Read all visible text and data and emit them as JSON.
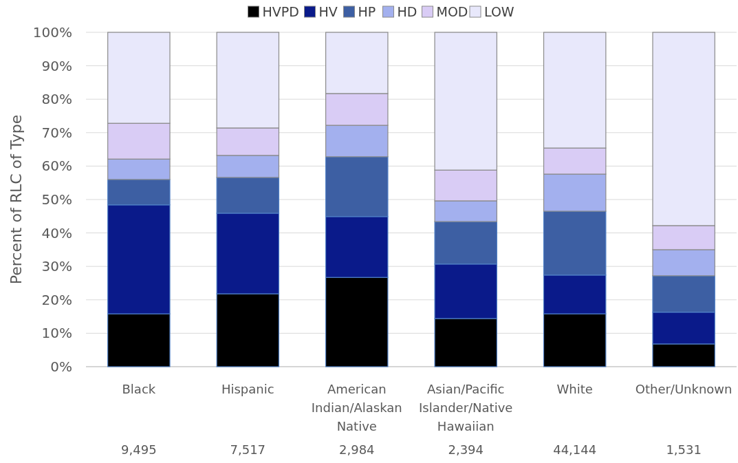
{
  "chart_data": {
    "type": "bar",
    "stacked": true,
    "ylabel": "Percent of RLC of Type",
    "categories": [
      "Black",
      "Hispanic",
      "American Indian/Alaskan Native",
      "Asian/Pacific Islander/Native Hawaiian",
      "White",
      "Other/Unknown"
    ],
    "series": [
      {
        "name": "HVPD",
        "color": "#000000",
        "values": [
          15.8,
          21.8,
          26.7,
          14.4,
          15.8,
          6.8
        ]
      },
      {
        "name": "HV",
        "color": "#0a1a8a",
        "values": [
          32.6,
          24.1,
          18.2,
          16.3,
          11.6,
          9.5
        ]
      },
      {
        "name": "HP",
        "color": "#3d5fa3",
        "values": [
          7.6,
          10.7,
          17.9,
          12.7,
          19.1,
          10.9
        ]
      },
      {
        "name": "HD",
        "color": "#a3b0ee",
        "values": [
          6.1,
          6.6,
          9.4,
          6.2,
          11.1,
          7.8
        ]
      },
      {
        "name": "MOD",
        "color": "#d9ccf5",
        "values": [
          10.7,
          8.2,
          9.5,
          9.2,
          7.8,
          7.2
        ]
      },
      {
        "name": "LOW",
        "color": "#e8e8fb",
        "values": [
          27.2,
          28.6,
          18.3,
          41.2,
          34.6,
          57.8
        ]
      }
    ],
    "ylim": [
      0,
      100
    ],
    "yticks": [
      {
        "value": 0,
        "label": "0%"
      },
      {
        "value": 10,
        "label": "10%"
      },
      {
        "value": 20,
        "label": "20%"
      },
      {
        "value": 30,
        "label": "30%"
      },
      {
        "value": 40,
        "label": "40%"
      },
      {
        "value": 50,
        "label": "50%"
      },
      {
        "value": 60,
        "label": "60%"
      },
      {
        "value": 70,
        "label": "70%"
      },
      {
        "value": 80,
        "label": "80%"
      },
      {
        "value": 90,
        "label": "90%"
      },
      {
        "value": 100,
        "label": "100%"
      }
    ],
    "grid": "y",
    "legend": "top",
    "annotations": [
      "9,495",
      "7,517",
      "2,984",
      "2,394",
      "44,144",
      "1,531"
    ]
  }
}
